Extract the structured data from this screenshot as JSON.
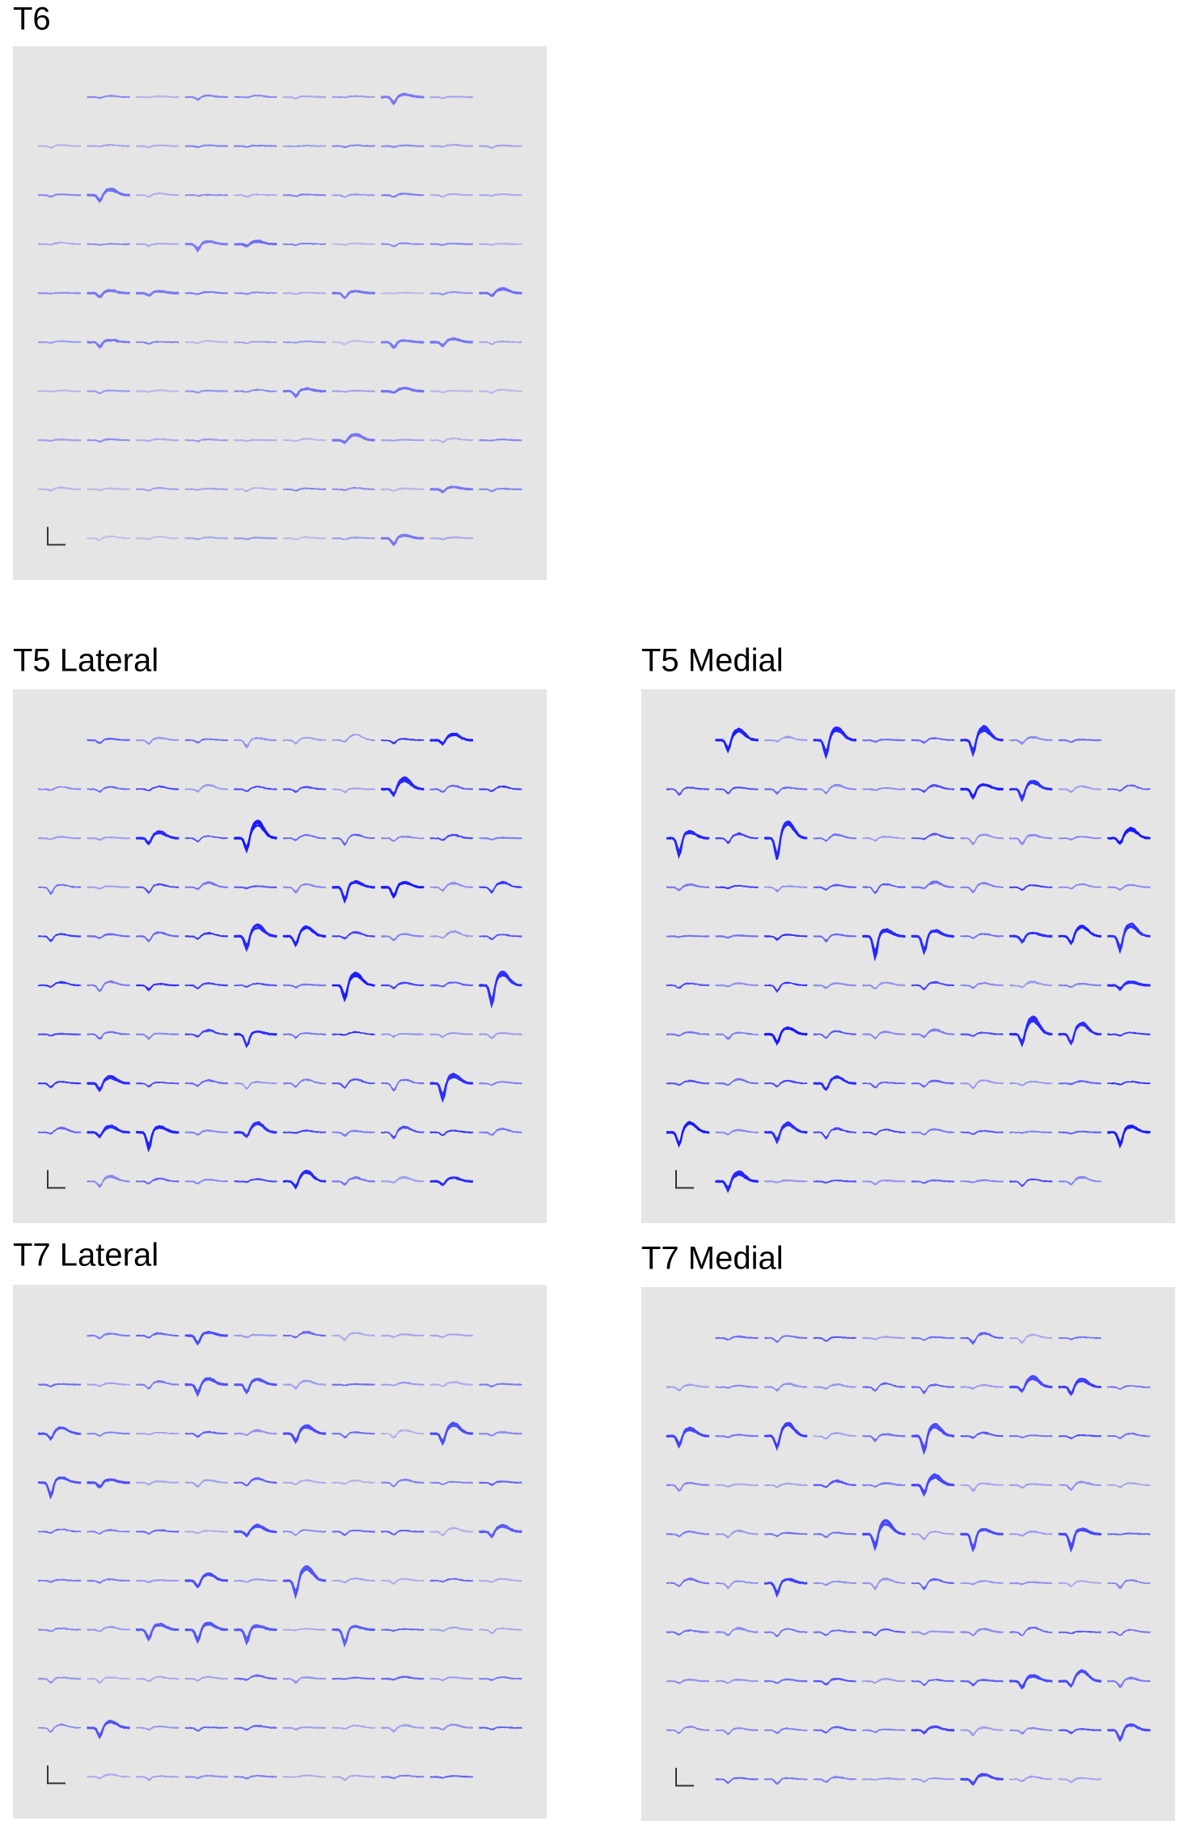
{
  "panels": [
    {
      "title": "T6"
    },
    {
      "title": "T5 Lateral"
    },
    {
      "title": "T5 Medial"
    },
    {
      "title": "T7 Lateral"
    },
    {
      "title": "T7 Medial"
    }
  ]
}
